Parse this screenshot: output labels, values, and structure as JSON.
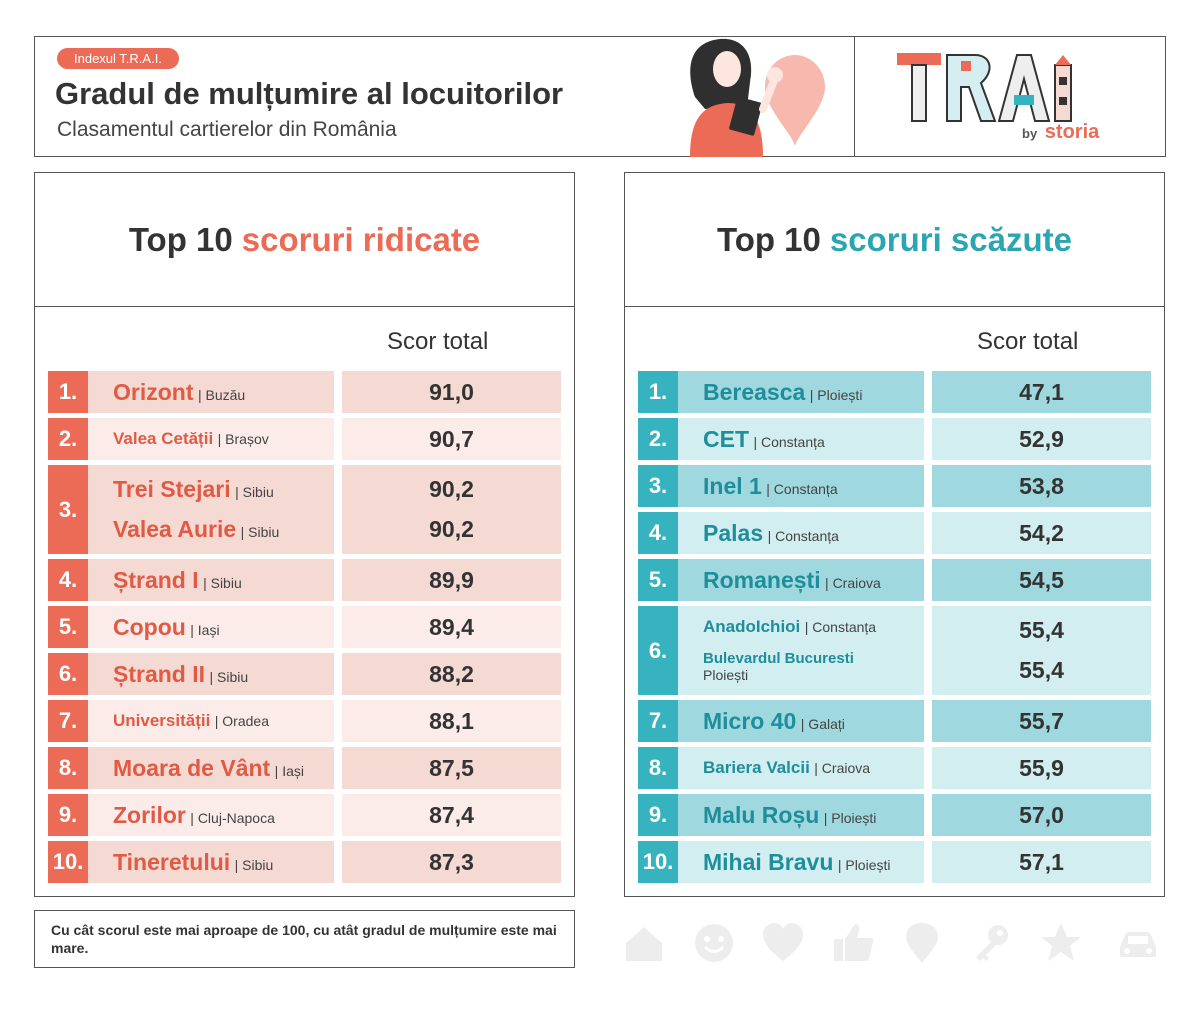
{
  "header": {
    "badge": "Indexul T.R.A.I.",
    "title": "Gradul de mulțumire al locuitorilor",
    "subtitle": "Clasamentul cartierelor din România",
    "logo_text": "TRAI",
    "by_label": "by",
    "brand": "storia"
  },
  "colors": {
    "coral": "#ec6b56",
    "teal": "#37b3bf"
  },
  "top_high": {
    "title_prefix": "Top 10",
    "title_accent": "scoruri ridicate",
    "score_header": "Scor total",
    "rows": [
      {
        "rank": "1.",
        "name": "Orizont",
        "city": "| Buzău",
        "score": "91,0"
      },
      {
        "rank": "2.",
        "name": "Valea Cetății",
        "city": "| Brașov",
        "score": "90,7"
      },
      {
        "rank": "3.",
        "name": "Trei Stejari",
        "city": "| Sibiu",
        "score": "90,2",
        "name2": "Valea Aurie",
        "city2": "| Sibiu",
        "score2": "90,2"
      },
      {
        "rank": "4.",
        "name": "Ștrand I",
        "city": "| Sibiu",
        "score": "89,9"
      },
      {
        "rank": "5.",
        "name": "Copou",
        "city": "| Iași",
        "score": "89,4"
      },
      {
        "rank": "6.",
        "name": "Ștrand II",
        "city": "| Sibiu",
        "score": "88,2"
      },
      {
        "rank": "7.",
        "name": "Universității",
        "city": "| Oradea",
        "score": "88,1"
      },
      {
        "rank": "8.",
        "name": "Moara de Vânt",
        "city": "| Iași",
        "score": "87,5"
      },
      {
        "rank": "9.",
        "name": "Zorilor",
        "city": "| Cluj-Napoca",
        "score": "87,4"
      },
      {
        "rank": "10.",
        "name": "Tineretului",
        "city": "| Sibiu",
        "score": "87,3"
      }
    ]
  },
  "top_low": {
    "title_prefix": "Top 10",
    "title_accent": "scoruri scăzute",
    "score_header": "Scor total",
    "rows": [
      {
        "rank": "1.",
        "name": "Bereasca",
        "city": "| Ploiești",
        "score": "47,1"
      },
      {
        "rank": "2.",
        "name": "CET",
        "city": "| Constanța",
        "score": "52,9"
      },
      {
        "rank": "3.",
        "name": "Inel 1",
        "city": "| Constanța",
        "score": "53,8"
      },
      {
        "rank": "4.",
        "name": "Palas",
        "city": "| Constanța",
        "score": "54,2"
      },
      {
        "rank": "5.",
        "name": "Romanești",
        "city": "| Craiova",
        "score": "54,5"
      },
      {
        "rank": "6.",
        "name": "AnadoIchioi",
        "city": "| Constanța",
        "score": "55,4",
        "name2": "Bulevardul Bucuresti",
        "city2": "Ploiești",
        "score2": "55,4"
      },
      {
        "rank": "7.",
        "name": "Micro 40",
        "city": "| Galați",
        "score": "55,7"
      },
      {
        "rank": "8.",
        "name": "Bariera Valcii",
        "city": "| Craiova",
        "score": "55,9"
      },
      {
        "rank": "9.",
        "name": "Malu Roșu",
        "city": "| Ploiești",
        "score": "57,0"
      },
      {
        "rank": "10.",
        "name": "Mihai Bravu",
        "city": "| Ploiești",
        "score": "57,1"
      }
    ]
  },
  "footnote": "Cu cât scorul este mai aproape de 100, cu atât gradul de mulțumire este mai mare.",
  "footer_icons": [
    "home-icon",
    "smiley-icon",
    "heart-icon",
    "thumbs-up-icon",
    "location-pin-icon",
    "key-icon",
    "star-icon",
    "car-icon"
  ]
}
